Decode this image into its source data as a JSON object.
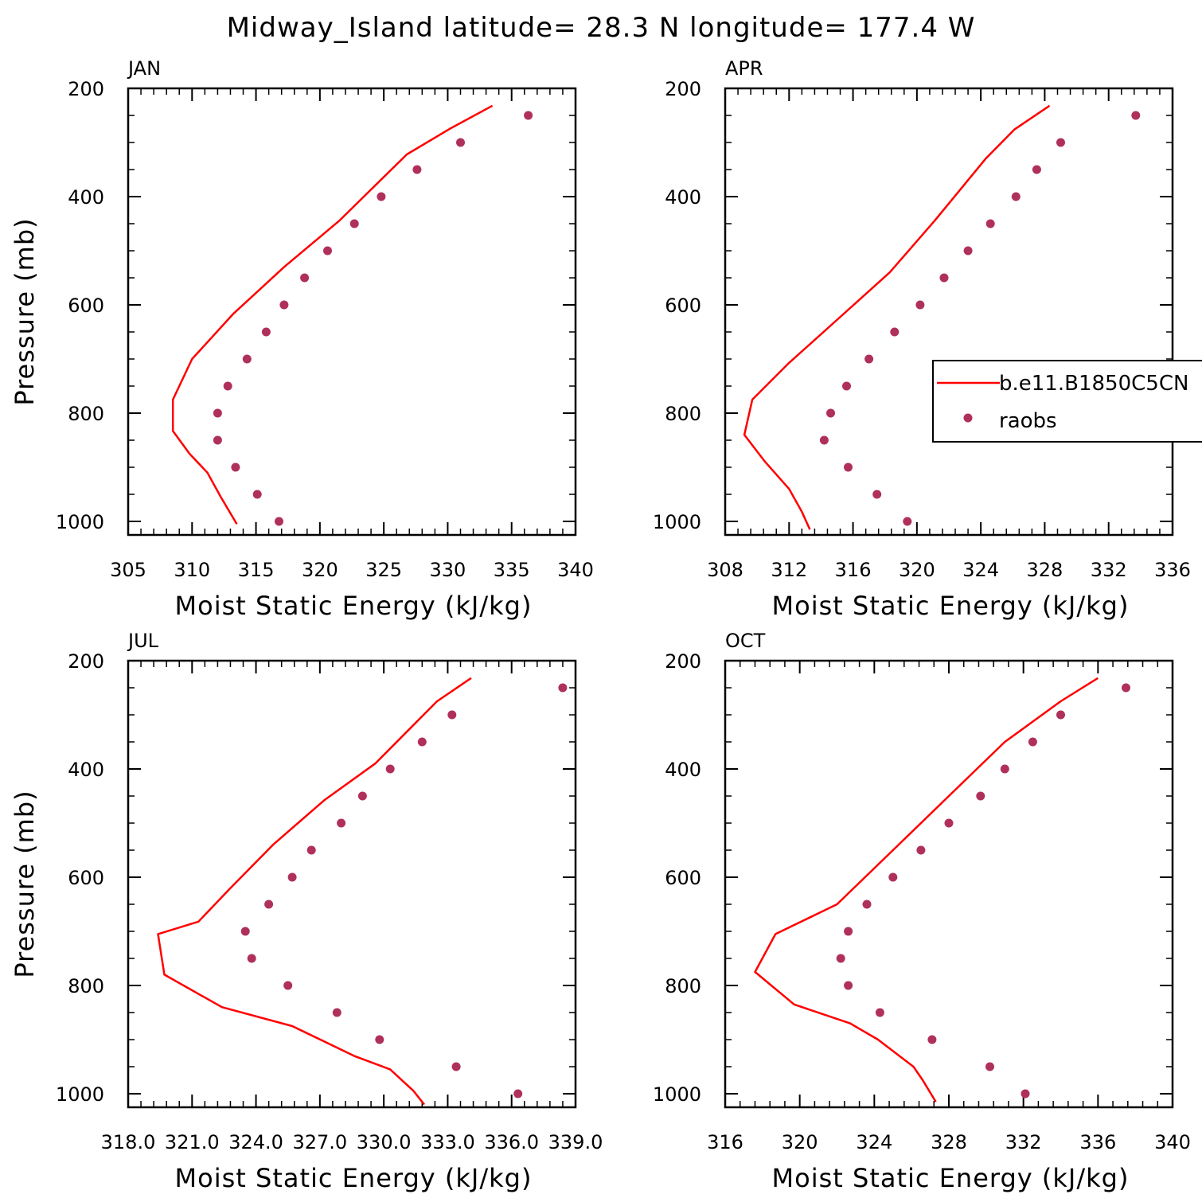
{
  "figure": {
    "title": "Midway_Island  latitude= 28.3 N longitude= 177.4 W"
  },
  "legend": {
    "model_label": "b.e11.B1850C5CN",
    "obs_label": "raobs"
  },
  "colors": {
    "model_line": "#ff0000",
    "obs_marker": "#b0305c",
    "axes": "#000000",
    "background": "#ffffff"
  },
  "chart_data": [
    {
      "type": "line",
      "panel_label": "JAN",
      "xlabel": "Moist Static Energy (kJ/kg)",
      "ylabel": "Pressure (mb)",
      "xlim": [
        305,
        340
      ],
      "ylim": [
        200,
        1025
      ],
      "y_inverted": true,
      "x_ticks": [
        305,
        310,
        315,
        320,
        325,
        330,
        335,
        340
      ],
      "x_tick_labels": [
        "305",
        "310",
        "315",
        "320",
        "325",
        "330",
        "335",
        "340"
      ],
      "y_ticks": [
        200,
        400,
        600,
        800,
        1000
      ],
      "y_tick_labels": [
        "200",
        "400",
        "600",
        "800",
        "1000"
      ],
      "series": [
        {
          "name": "b.e11.B1850C5CN",
          "kind": "line",
          "x": [
            333.5,
            330.3,
            326.8,
            321.5,
            317.2,
            313.2,
            310.0,
            308.5,
            308.5,
            309.8,
            311.2,
            312.2,
            313.5
          ],
          "y": [
            232,
            273,
            322,
            445,
            530,
            617,
            700,
            775,
            833,
            875,
            910,
            953,
            1005
          ]
        },
        {
          "name": "raobs",
          "kind": "scatter",
          "x": [
            336.3,
            331.0,
            327.6,
            324.8,
            322.7,
            320.6,
            318.8,
            317.2,
            315.8,
            314.3,
            312.8,
            312.0,
            312.0,
            313.4,
            315.1,
            316.8
          ],
          "y": [
            250,
            300,
            350,
            400,
            450,
            500,
            550,
            600,
            650,
            700,
            750,
            800,
            850,
            900,
            950,
            1000
          ]
        }
      ]
    },
    {
      "type": "line",
      "panel_label": "APR",
      "xlabel": "Moist Static Energy (kJ/kg)",
      "ylabel": "",
      "xlim": [
        308,
        336
      ],
      "ylim": [
        200,
        1025
      ],
      "y_inverted": true,
      "x_ticks": [
        308,
        312,
        316,
        320,
        324,
        328,
        332,
        336
      ],
      "x_tick_labels": [
        "308",
        "312",
        "316",
        "320",
        "324",
        "328",
        "332",
        "336"
      ],
      "y_ticks": [
        200,
        400,
        600,
        800,
        1000
      ],
      "y_tick_labels": [
        "200",
        "400",
        "600",
        "800",
        "1000"
      ],
      "series": [
        {
          "name": "b.e11.B1850C5CN",
          "kind": "line",
          "x": [
            328.3,
            326.1,
            324.3,
            321.1,
            318.3,
            315.1,
            312.0,
            309.7,
            309.2,
            310.5,
            312.0,
            312.8,
            313.3
          ],
          "y": [
            232,
            276,
            330,
            445,
            540,
            625,
            707,
            775,
            840,
            890,
            940,
            982,
            1015
          ]
        },
        {
          "name": "raobs",
          "kind": "scatter",
          "x": [
            333.7,
            329.0,
            327.5,
            326.2,
            324.6,
            323.2,
            321.7,
            320.2,
            318.6,
            317.0,
            315.6,
            314.6,
            314.2,
            315.7,
            317.5,
            319.4
          ],
          "y": [
            250,
            300,
            350,
            400,
            450,
            500,
            550,
            600,
            650,
            700,
            750,
            800,
            850,
            900,
            950,
            1000
          ]
        }
      ]
    },
    {
      "type": "line",
      "panel_label": "JUL",
      "xlabel": "Moist Static Energy (kJ/kg)",
      "ylabel": "Pressure (mb)",
      "xlim": [
        318.0,
        339.0
      ],
      "ylim": [
        200,
        1025
      ],
      "y_inverted": true,
      "x_ticks": [
        318.0,
        321.0,
        324.0,
        327.0,
        330.0,
        333.0,
        336.0,
        339.0
      ],
      "x_tick_labels": [
        "318.0",
        "321.0",
        "324.0",
        "327.0",
        "330.0",
        "333.0",
        "336.0",
        "339.0"
      ],
      "y_ticks": [
        200,
        400,
        600,
        800,
        1000
      ],
      "y_tick_labels": [
        "200",
        "400",
        "600",
        "800",
        "1000"
      ],
      "series": [
        {
          "name": "b.e11.B1850C5CN",
          "kind": "line",
          "x": [
            334.1,
            332.5,
            329.6,
            327.2,
            324.8,
            322.8,
            321.3,
            319.4,
            319.7,
            322.4,
            325.7,
            328.6,
            330.3,
            331.4,
            331.8,
            331.9
          ],
          "y": [
            232,
            275,
            390,
            458,
            540,
            620,
            682,
            705,
            780,
            840,
            875,
            930,
            955,
            995,
            1015,
            1020
          ]
        },
        {
          "name": "raobs",
          "kind": "scatter",
          "x": [
            338.4,
            333.2,
            331.8,
            330.3,
            329.0,
            328.0,
            326.6,
            325.7,
            324.6,
            323.5,
            323.8,
            325.5,
            327.8,
            329.8,
            333.4,
            336.3
          ],
          "y": [
            250,
            300,
            350,
            400,
            450,
            500,
            550,
            600,
            650,
            700,
            750,
            800,
            850,
            900,
            950,
            1000
          ]
        }
      ]
    },
    {
      "type": "line",
      "panel_label": "OCT",
      "xlabel": "Moist Static Energy (kJ/kg)",
      "ylabel": "",
      "xlim": [
        316,
        340
      ],
      "ylim": [
        200,
        1025
      ],
      "y_inverted": true,
      "x_ticks": [
        316,
        320,
        324,
        328,
        332,
        336,
        340
      ],
      "x_tick_labels": [
        "316",
        "320",
        "324",
        "328",
        "332",
        "336",
        "340"
      ],
      "y_ticks": [
        200,
        400,
        600,
        800,
        1000
      ],
      "y_tick_labels": [
        "200",
        "400",
        "600",
        "800",
        "1000"
      ],
      "series": [
        {
          "name": "b.e11.B1850C5CN",
          "kind": "line",
          "x": [
            336.0,
            334.0,
            331.0,
            328.0,
            325.0,
            322.0,
            318.7,
            317.6,
            319.7,
            322.7,
            324.2,
            326.1,
            326.6,
            327.3
          ],
          "y": [
            232,
            275,
            350,
            450,
            550,
            650,
            705,
            775,
            835,
            870,
            900,
            950,
            975,
            1015
          ]
        },
        {
          "name": "raobs",
          "kind": "scatter",
          "x": [
            337.5,
            334.0,
            332.5,
            331.0,
            329.7,
            328.0,
            326.5,
            325.0,
            323.6,
            322.6,
            322.2,
            322.6,
            324.3,
            327.1,
            330.2,
            332.1
          ],
          "y": [
            250,
            300,
            350,
            400,
            450,
            500,
            550,
            600,
            650,
            700,
            750,
            800,
            850,
            900,
            950,
            1000
          ]
        }
      ]
    }
  ]
}
